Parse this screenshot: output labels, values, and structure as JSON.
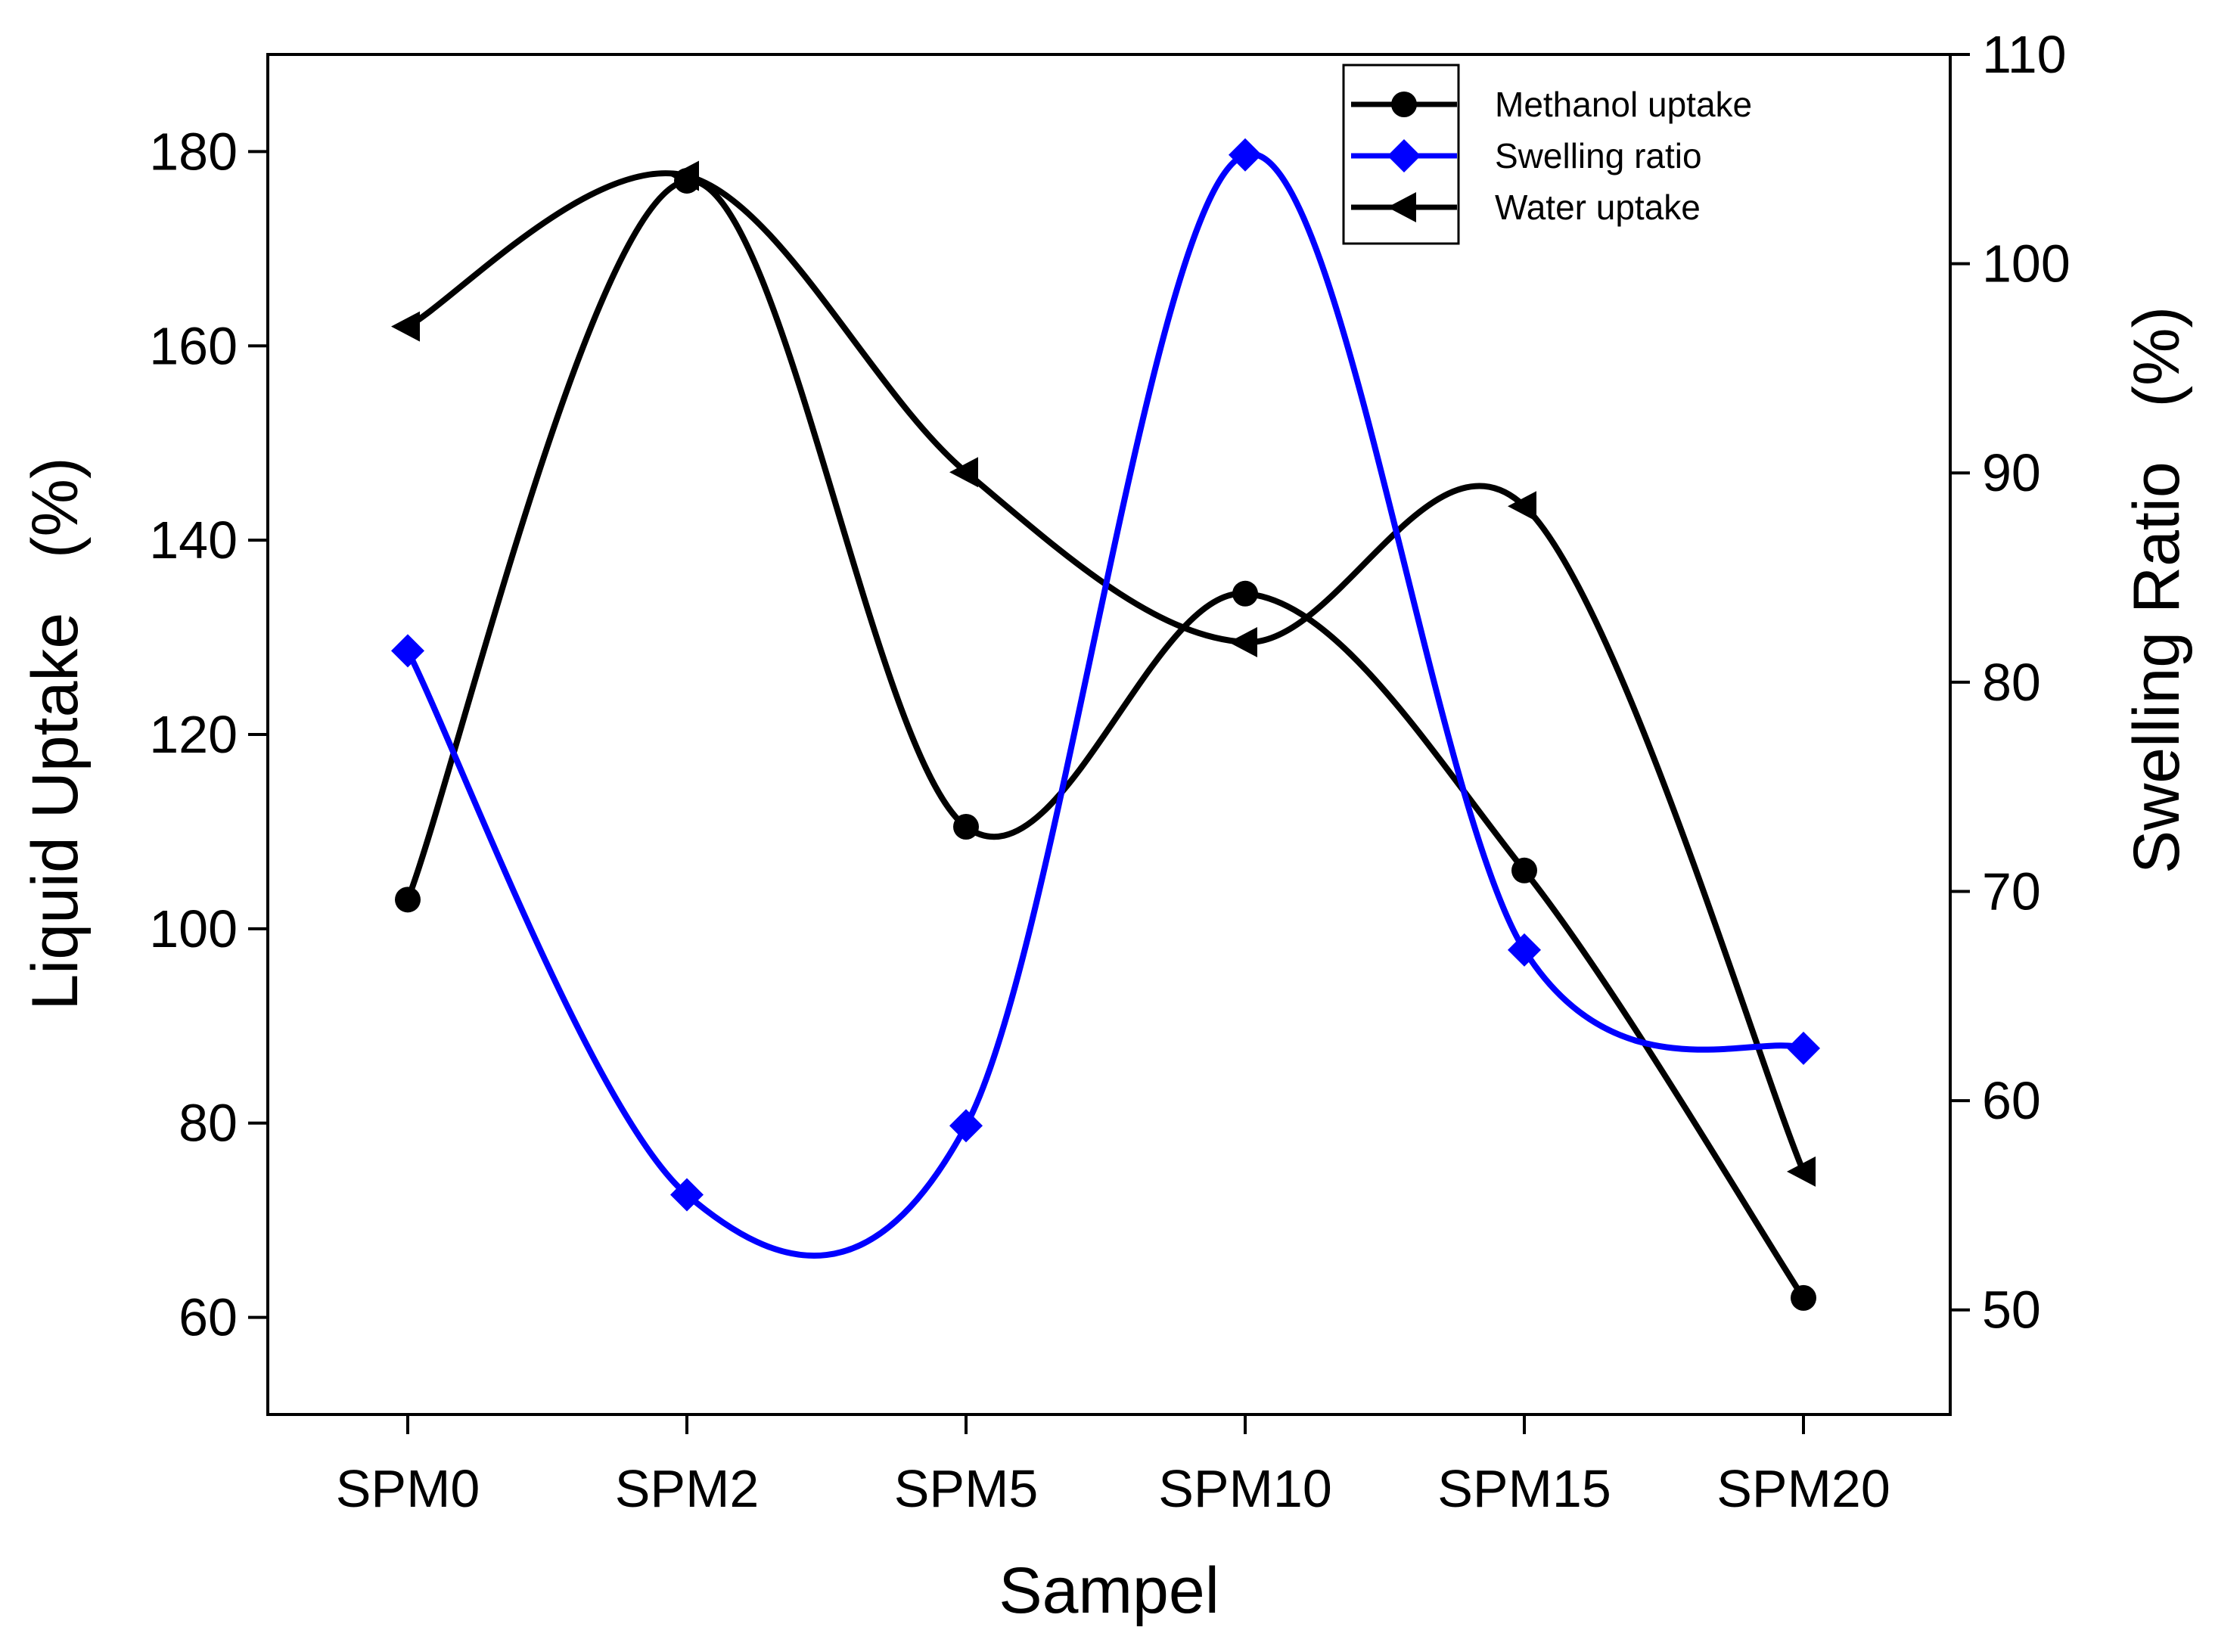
{
  "chart_data": {
    "type": "line",
    "title": "",
    "xlabel": "Sampel",
    "ylabel_left": "Liquid Uptake   (%)",
    "ylabel_right": "Swelling Ratio   (%)",
    "categories": [
      "SPM0",
      "SPM2",
      "SPM5",
      "SPM10",
      "SPM15",
      "SPM20"
    ],
    "ylim_left": [
      50,
      190
    ],
    "yticks_left": [
      60,
      80,
      100,
      120,
      140,
      160,
      180
    ],
    "ylim_right": [
      45,
      110
    ],
    "yticks_right": [
      50,
      60,
      70,
      80,
      90,
      100,
      110
    ],
    "grid": false,
    "legend_position": "top-right",
    "series": [
      {
        "name": "Methanol uptake",
        "axis": "left",
        "marker": "circle",
        "color": "#000000",
        "values": [
          103,
          177,
          110.5,
          134.5,
          106,
          62
        ]
      },
      {
        "name": "Swelling ratio",
        "axis": "right",
        "marker": "diamond",
        "color": "#0000ff",
        "values": [
          81.5,
          55.5,
          58.8,
          105.2,
          67.2,
          62.5
        ]
      },
      {
        "name": "Water uptake",
        "axis": "left",
        "marker": "triangle-left",
        "color": "#000000",
        "values": [
          162,
          177.5,
          147,
          129.5,
          143.5,
          75
        ]
      }
    ]
  }
}
